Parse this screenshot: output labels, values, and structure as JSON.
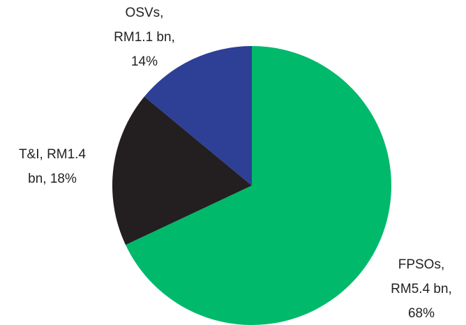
{
  "chart_data": {
    "type": "pie",
    "categories": [
      "FPSOs",
      "T&I",
      "OSVs"
    ],
    "values": [
      68,
      18,
      14
    ],
    "value_labels": [
      [
        "FPSOs,",
        "RM5.4 bn,",
        "68%"
      ],
      [
        "T&I, RM1.4",
        "bn, 18%"
      ],
      [
        "OSVs,",
        "RM1.1 bn,",
        "14%"
      ]
    ],
    "colors": [
      "#00b96b",
      "#231f20",
      "#2e3f96"
    ]
  }
}
